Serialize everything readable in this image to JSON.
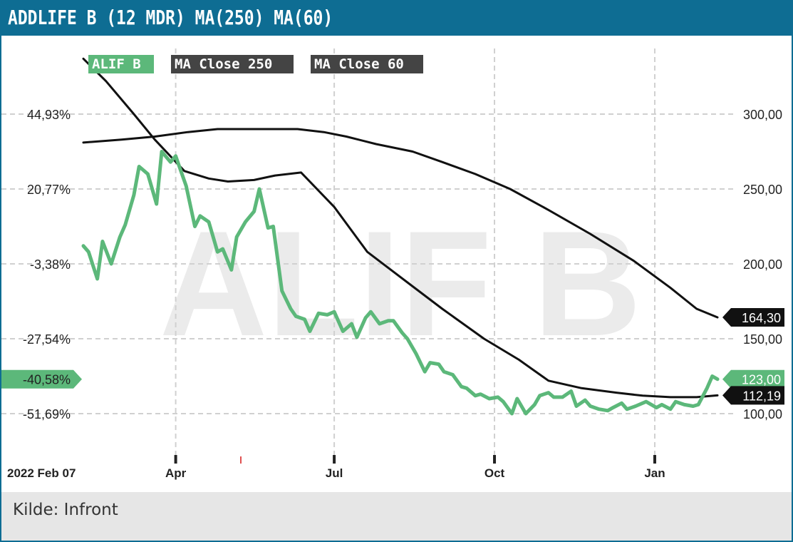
{
  "title": "ADDLIFE B (12 MDR) MA(250) MA(60)",
  "source": "Kilde: Infront",
  "watermark": "ALIF B",
  "colors": {
    "header": "#0e6d93",
    "price": "#5cb87a",
    "ma": "#111111",
    "grid": "#d0d0d0",
    "watermark": "#ebebeb",
    "footer": "#e6e6e6"
  },
  "legend": [
    {
      "label": "ALIF B",
      "color": "#5cb87a"
    },
    {
      "label": "MA Close 250",
      "color": "#444444"
    },
    {
      "label": "MA Close 60",
      "color": "#444444"
    }
  ],
  "chart_data": {
    "type": "line",
    "x_axis": {
      "start": "2022-02-07",
      "end": "2023-02-06",
      "tick_labels": [
        {
          "label": "2022 Feb 07",
          "date": "2022-02-07"
        },
        {
          "label": "Apr",
          "date": "2022-04-01"
        },
        {
          "label": "Jul",
          "date": "2022-07-01"
        },
        {
          "label": "Oct",
          "date": "2022-10-01"
        },
        {
          "label": "Jan",
          "date": "2023-01-01"
        }
      ]
    },
    "y_left": {
      "unit": "percent change",
      "ticks": [
        "44,93%",
        "20,77%",
        "-3,38%",
        "-27,54%",
        "-51,69%"
      ]
    },
    "y_right": {
      "unit": "price",
      "ticks": [
        "300,00",
        "250,00",
        "200,00",
        "150,00",
        "100,00"
      ],
      "range": [
        68,
        345
      ]
    },
    "grid": true,
    "legend_position": "top-left",
    "last_value_labels": [
      {
        "series": "MA Close 250",
        "value": "164,30"
      },
      {
        "series": "ALIF B",
        "value": "123,00"
      },
      {
        "series": "MA Close 60",
        "value": "112,19"
      }
    ],
    "left_marker": {
      "series": "ALIF B",
      "value": "-40,58%"
    },
    "series": [
      {
        "name": "ALIF B",
        "x": [
          "2022-02-07",
          "2022-02-10",
          "2022-02-15",
          "2022-02-18",
          "2022-02-23",
          "2022-02-28",
          "2022-03-03",
          "2022-03-08",
          "2022-03-11",
          "2022-03-16",
          "2022-03-21",
          "2022-03-24",
          "2022-03-29",
          "2022-04-01",
          "2022-04-04",
          "2022-04-07",
          "2022-04-12",
          "2022-04-15",
          "2022-04-20",
          "2022-04-25",
          "2022-04-28",
          "2022-05-03",
          "2022-05-06",
          "2022-05-11",
          "2022-05-16",
          "2022-05-19",
          "2022-05-24",
          "2022-05-27",
          "2022-06-01",
          "2022-06-06",
          "2022-06-09",
          "2022-06-14",
          "2022-06-17",
          "2022-06-22",
          "2022-06-27",
          "2022-07-01",
          "2022-07-06",
          "2022-07-11",
          "2022-07-14",
          "2022-07-19",
          "2022-07-22",
          "2022-07-27",
          "2022-08-01",
          "2022-08-04",
          "2022-08-09",
          "2022-08-12",
          "2022-08-17",
          "2022-08-22",
          "2022-08-25",
          "2022-08-30",
          "2022-09-02",
          "2022-09-07",
          "2022-09-12",
          "2022-09-15",
          "2022-09-20",
          "2022-09-23",
          "2022-09-28",
          "2022-10-03",
          "2022-10-06",
          "2022-10-11",
          "2022-10-14",
          "2022-10-19",
          "2022-10-24",
          "2022-10-27",
          "2022-11-01",
          "2022-11-04",
          "2022-11-09",
          "2022-11-14",
          "2022-11-17",
          "2022-11-22",
          "2022-11-25",
          "2022-11-30",
          "2022-12-05",
          "2022-12-08",
          "2022-12-13",
          "2022-12-16",
          "2022-12-21",
          "2022-12-27",
          "2023-01-02",
          "2023-01-05",
          "2023-01-10",
          "2023-01-13",
          "2023-01-18",
          "2023-01-23",
          "2023-01-26",
          "2023-01-31",
          "2023-02-03",
          "2023-02-06"
        ],
        "values": [
          212,
          208,
          190,
          215,
          200,
          218,
          226,
          246,
          265,
          260,
          240,
          275,
          268,
          272,
          262,
          252,
          225,
          232,
          228,
          208,
          210,
          196,
          218,
          228,
          235,
          250,
          224,
          225,
          182,
          170,
          165,
          163,
          155,
          167,
          166,
          168,
          155,
          160,
          151,
          164,
          168,
          160,
          162,
          162,
          154,
          150,
          140,
          128,
          134,
          133,
          128,
          126,
          118,
          117,
          112,
          113,
          110,
          111,
          108,
          100,
          110,
          100,
          106,
          112,
          114,
          111,
          111,
          115,
          105,
          109,
          105,
          103,
          102,
          104,
          107,
          103,
          105,
          108,
          104,
          106,
          103,
          108,
          106,
          105,
          106,
          117,
          125,
          123
        ]
      },
      {
        "name": "MA Close 250",
        "x": [
          "2022-02-07",
          "2022-03-01",
          "2022-03-20",
          "2022-04-08",
          "2022-04-25",
          "2022-05-20",
          "2022-06-10",
          "2022-06-25",
          "2022-07-08",
          "2022-07-25",
          "2022-08-15",
          "2022-09-01",
          "2022-09-20",
          "2022-10-10",
          "2022-11-01",
          "2022-11-25",
          "2022-12-20",
          "2023-01-10",
          "2023-01-25",
          "2023-02-06"
        ],
        "values": [
          281,
          283,
          285,
          288,
          290,
          290,
          290,
          288,
          285,
          280,
          275,
          268,
          260,
          250,
          236,
          220,
          202,
          184,
          170,
          164.3
        ]
      },
      {
        "name": "MA Close 60",
        "x": [
          "2022-02-07",
          "2022-02-20",
          "2022-03-08",
          "2022-03-20",
          "2022-04-06",
          "2022-04-20",
          "2022-05-01",
          "2022-05-16",
          "2022-05-28",
          "2022-06-12",
          "2022-07-01",
          "2022-07-20",
          "2022-08-15",
          "2022-09-01",
          "2022-09-25",
          "2022-10-15",
          "2022-11-01",
          "2022-11-20",
          "2022-12-10",
          "2022-12-25",
          "2023-01-10",
          "2023-01-25",
          "2023-02-06"
        ],
        "values": [
          337,
          322,
          300,
          283,
          262,
          257,
          255,
          256,
          259,
          261,
          238,
          208,
          185,
          170,
          150,
          136,
          122,
          117,
          114,
          112,
          111,
          111,
          112.19
        ]
      }
    ]
  }
}
